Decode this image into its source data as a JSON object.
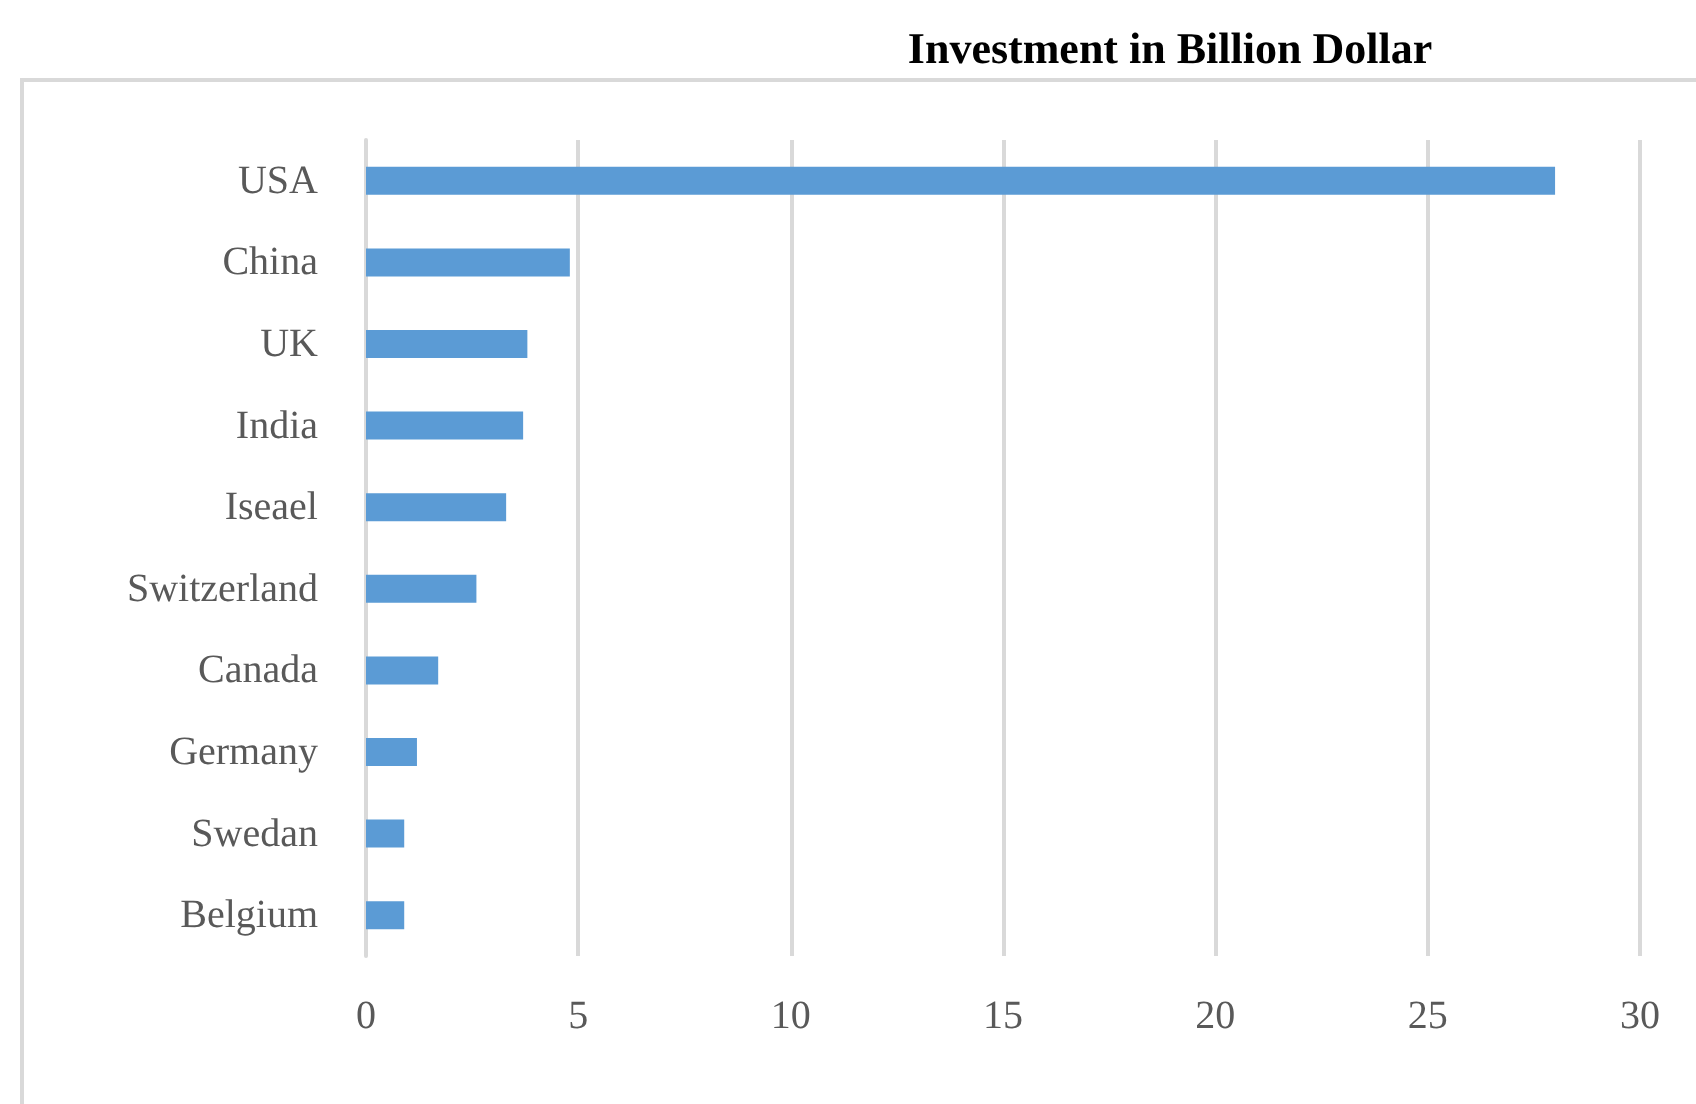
{
  "chart_data": {
    "type": "bar",
    "orientation": "horizontal",
    "title": "Investment in Billion Dollar",
    "categories": [
      "USA",
      "China",
      "UK",
      "India",
      "Iseael",
      "Switzerland",
      "Canada",
      "Germany",
      "Swedan",
      "Belgium"
    ],
    "values": [
      28,
      4.8,
      3.8,
      3.7,
      3.3,
      2.6,
      1.7,
      1.2,
      0.9,
      0.9
    ],
    "color": "#5b9bd5",
    "xlim": [
      0,
      30
    ],
    "xticks": [
      0,
      5,
      10,
      15,
      20,
      25,
      30
    ],
    "grid": "x"
  }
}
